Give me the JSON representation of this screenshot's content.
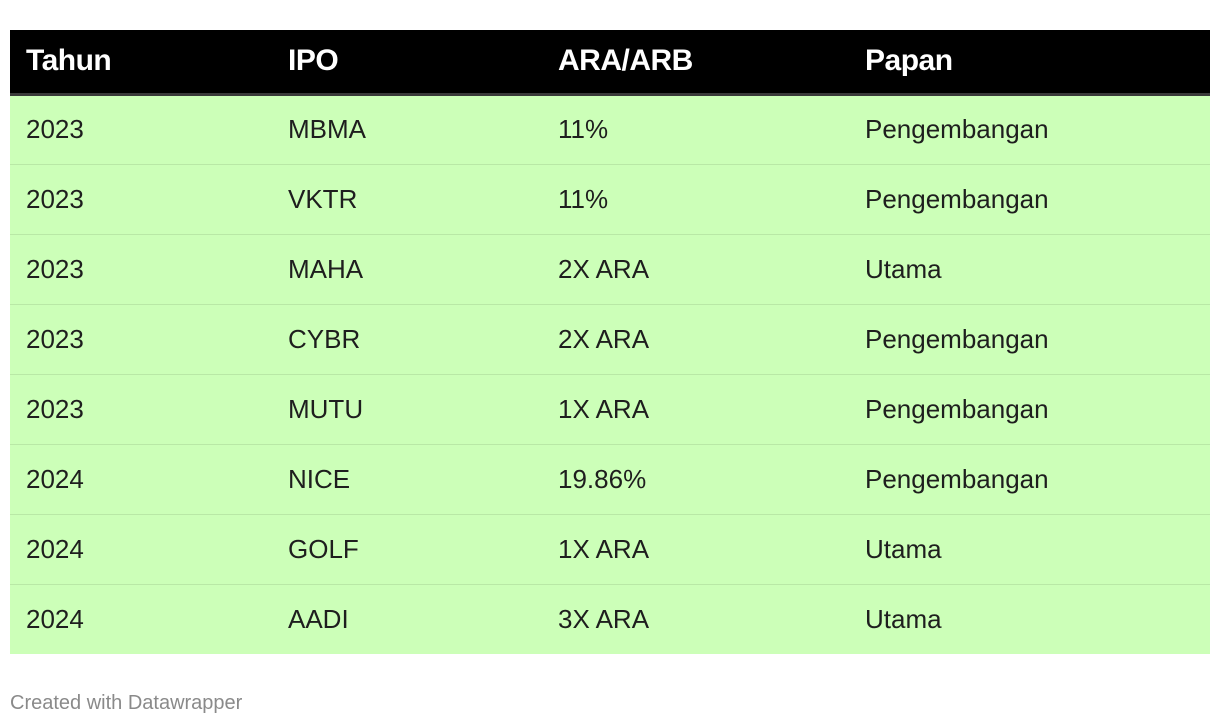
{
  "chart_data": {
    "type": "table",
    "columns": [
      "Tahun",
      "IPO",
      "ARA/ARB",
      "Papan"
    ],
    "rows": [
      [
        "2023",
        "MBMA",
        "11%",
        "Pengembangan"
      ],
      [
        "2023",
        "VKTR",
        "11%",
        "Pengembangan"
      ],
      [
        "2023",
        "MAHA",
        "2X ARA",
        "Utama"
      ],
      [
        "2023",
        "CYBR",
        "2X ARA",
        "Pengembangan"
      ],
      [
        "2023",
        "MUTU",
        "1X ARA",
        "Pengembangan"
      ],
      [
        "2024",
        "NICE",
        "19.86%",
        "Pengembangan"
      ],
      [
        "2024",
        "GOLF",
        "1X ARA",
        "Utama"
      ],
      [
        "2024",
        "AADI",
        "3X ARA",
        "Utama"
      ]
    ],
    "header_background": "#000000",
    "header_text_color": "#ffffff",
    "row_background": "#ccffb8"
  },
  "footer": {
    "credit": "Created with Datawrapper"
  }
}
